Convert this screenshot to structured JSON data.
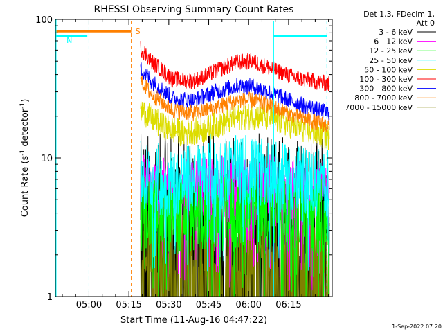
{
  "chart_data": {
    "type": "line",
    "title": "RHESSI Observing Summary Count Rates",
    "xlabel": "Start Time (11-Aug-16 04:47:22)",
    "ylabel_main": "Count Rate (s",
    "ylabel_sup1": "-1",
    "ylabel_mid": " detector",
    "ylabel_sup2": "-1",
    "ylabel_end": ")",
    "x_unit": "minutes since 04:47:22 start",
    "xlim": [
      0,
      104
    ],
    "ylim": [
      1,
      100
    ],
    "y_scale": "log",
    "x_ticks": [
      {
        "label": "05:00",
        "value": 12.6
      },
      {
        "label": "05:15",
        "value": 27.6
      },
      {
        "label": "05:30",
        "value": 42.6
      },
      {
        "label": "05:45",
        "value": 57.6
      },
      {
        "label": "06:00",
        "value": 72.6
      },
      {
        "label": "06:15",
        "value": 87.6
      }
    ],
    "y_ticks": [
      {
        "label": "1",
        "value": 1
      },
      {
        "label": "10",
        "value": 10
      },
      {
        "label": "100",
        "value": 100
      }
    ],
    "legend_header": [
      "Det 1,3, FDecim 1,",
      "Att 0"
    ],
    "legend_placement": "right",
    "timestamp": "1-Sep-2022 07:20",
    "series": [
      {
        "name": "3 - 6 keV",
        "color": "#000000",
        "base": [
          [
            32,
            1.9
          ],
          [
            103,
            1.9
          ]
        ],
        "spread": 0.9,
        "style": "lowfloor"
      },
      {
        "name": "6 - 12 keV",
        "color": "#ff00ff",
        "base": [
          [
            32,
            6.0
          ],
          [
            45,
            5.5
          ],
          [
            60,
            5.8
          ],
          [
            72,
            5.8
          ],
          [
            85,
            5.6
          ],
          [
            103,
            5.4
          ]
        ],
        "spread": 0.25,
        "style": "spiky"
      },
      {
        "name": "12 - 25 keV",
        "color": "#00ff00",
        "base": [
          [
            32,
            4.0
          ],
          [
            45,
            3.8
          ],
          [
            60,
            4.0
          ],
          [
            72,
            4.2
          ],
          [
            85,
            4.0
          ],
          [
            103,
            3.8
          ]
        ],
        "spread": 0.28,
        "style": "spiky"
      },
      {
        "name": "25 - 50 keV",
        "color": "#00ffff",
        "base": [
          [
            32,
            7.5
          ],
          [
            40,
            6.5
          ],
          [
            50,
            7.0
          ],
          [
            60,
            7.8
          ],
          [
            68,
            8.2
          ],
          [
            75,
            8.0
          ],
          [
            85,
            7.2
          ],
          [
            103,
            6.5
          ]
        ],
        "spread": 0.25,
        "style": "spiky"
      },
      {
        "name": "50 - 100 keV",
        "color": "#dddd00",
        "base": [
          [
            32,
            22
          ],
          [
            40,
            17
          ],
          [
            48,
            15
          ],
          [
            56,
            16
          ],
          [
            63,
            18
          ],
          [
            70,
            20
          ],
          [
            78,
            20
          ],
          [
            90,
            17
          ],
          [
            103,
            14
          ]
        ],
        "spread": 0.1,
        "style": "band"
      },
      {
        "name": "100 - 300 keV",
        "color": "#ff0000",
        "base": [
          [
            32,
            62
          ],
          [
            36,
            50
          ],
          [
            44,
            37
          ],
          [
            52,
            36
          ],
          [
            60,
            42
          ],
          [
            68,
            49
          ],
          [
            74,
            50
          ],
          [
            80,
            45
          ],
          [
            90,
            38
          ],
          [
            103,
            34
          ]
        ],
        "spread": 0.06,
        "style": "band"
      },
      {
        "name": "300 - 800 keV",
        "color": "#0000ff",
        "base": [
          [
            32,
            44
          ],
          [
            36,
            36
          ],
          [
            44,
            27
          ],
          [
            52,
            26
          ],
          [
            60,
            30
          ],
          [
            68,
            33
          ],
          [
            74,
            33
          ],
          [
            80,
            30
          ],
          [
            90,
            25
          ],
          [
            103,
            21
          ]
        ],
        "spread": 0.06,
        "style": "band"
      },
      {
        "name": "800 - 7000 keV",
        "color": "#ff8000",
        "base": [
          [
            32,
            36
          ],
          [
            36,
            29
          ],
          [
            44,
            22
          ],
          [
            52,
            21
          ],
          [
            60,
            23
          ],
          [
            68,
            26
          ],
          [
            74,
            26
          ],
          [
            80,
            24
          ],
          [
            90,
            20
          ],
          [
            103,
            17
          ]
        ],
        "spread": 0.06,
        "style": "band"
      },
      {
        "name": "7000 - 15000 keV",
        "color": "#808000",
        "base": [
          [
            32,
            1.4
          ],
          [
            103,
            1.4
          ]
        ],
        "spread": 0.5,
        "style": "lowfloor"
      }
    ],
    "state_bars": [
      {
        "label": "S",
        "color": "#ff8000",
        "x_range": [
          0,
          28.5
        ],
        "level": 82
      },
      {
        "label": "N",
        "color": "#00ffff",
        "x_range": [
          0,
          12.0
        ],
        "level": 76
      },
      {
        "label": "",
        "color": "#00ffff",
        "x_range": [
          82.0,
          102.0
        ],
        "level": 76
      }
    ],
    "vertical_markers": [
      {
        "color": "#00ffff",
        "x": 12.6,
        "dashed": true
      },
      {
        "color": "#ff8000",
        "x": 28.5,
        "dashed": true
      },
      {
        "color": "#00ffff",
        "x": 82.0,
        "dashed": false
      },
      {
        "color": "#00ffff",
        "x": 102.0,
        "dashed": true
      }
    ]
  }
}
